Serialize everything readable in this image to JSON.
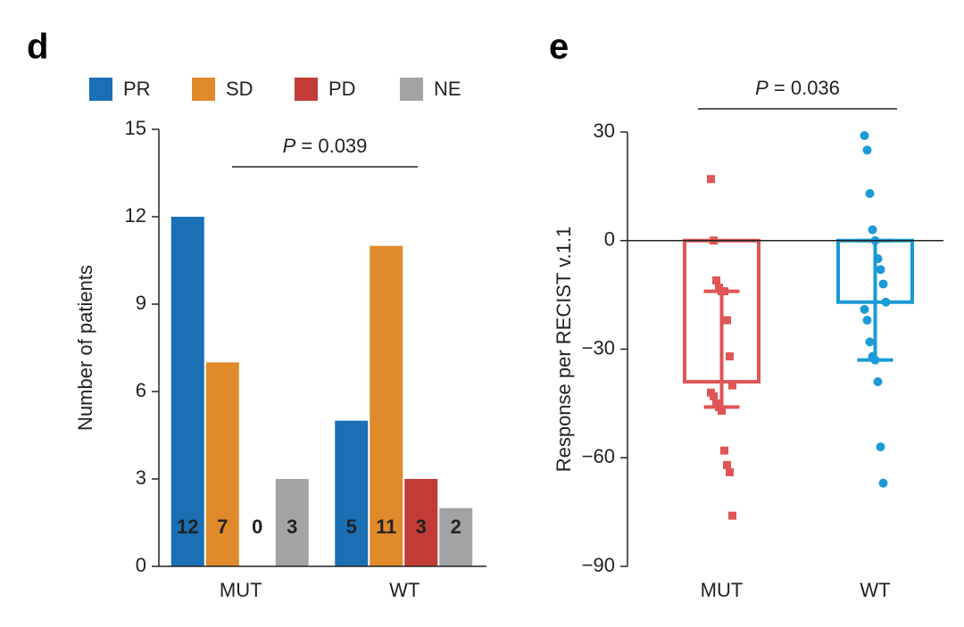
{
  "chart_data": [
    {
      "type": "bar",
      "panel_label": "d",
      "categories": [
        "MUT",
        "WT"
      ],
      "series": [
        {
          "name": "PR",
          "color": "#1a6fb5",
          "values": [
            12,
            5
          ]
        },
        {
          "name": "SD",
          "color": "#e08a2c",
          "values": [
            7,
            11
          ]
        },
        {
          "name": "PD",
          "color": "#c33b37",
          "values": [
            0,
            3
          ]
        },
        {
          "name": "NE",
          "color": "#a3a3a3",
          "values": [
            3,
            2
          ]
        }
      ],
      "y_label": "Number of patients",
      "annotation": {
        "symbol": "P",
        "text": "= 0.039"
      },
      "ylim": [
        0,
        15
      ],
      "yticks": [
        0,
        3,
        6,
        9,
        12,
        15
      ],
      "legend": "top"
    },
    {
      "type": "bar",
      "panel_label": "e",
      "categories": [
        "MUT",
        "WT"
      ],
      "values": [
        -39,
        -17
      ],
      "colors": [
        "#e05555",
        "#1a9ad6"
      ],
      "markers": [
        "square",
        "circle"
      ],
      "error_bars": [
        {
          "low": -46,
          "high": -14
        },
        {
          "low": -33,
          "high": 0
        }
      ],
      "points": [
        [
          17,
          0,
          -11,
          -13,
          -14,
          -14,
          -22,
          -32,
          -40,
          -42,
          -43,
          -45,
          -46,
          -47,
          -58,
          -62,
          -64,
          -76
        ],
        [
          29,
          25,
          13,
          3,
          0,
          -5,
          -8,
          -12,
          -17,
          -19,
          -22,
          -28,
          -32,
          -33,
          -39,
          -57,
          -67
        ]
      ],
      "y_label": "Response per RECIST v.1.1",
      "annotation": {
        "symbol": "P",
        "text": "= 0.036"
      },
      "ylim": [
        -90,
        30
      ],
      "yticks": [
        {
          "value": -90,
          "label": "−90"
        },
        {
          "value": -60,
          "label": "−60"
        },
        {
          "value": -30,
          "label": "−30"
        },
        0,
        30
      ]
    }
  ]
}
